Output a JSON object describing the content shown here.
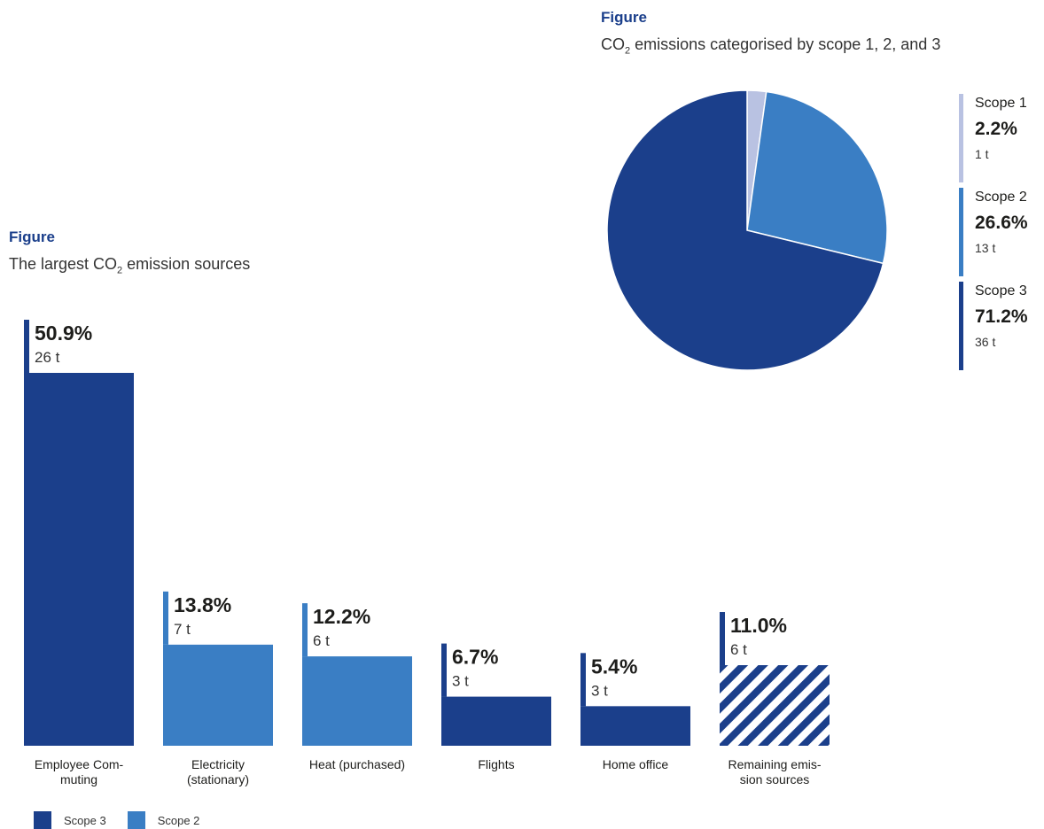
{
  "pie_figure": {
    "label": "Figure",
    "title_pre": "CO",
    "title_sub": "2",
    "title_post": " emissions categorised by scope 1, 2, and 3"
  },
  "bar_figure": {
    "label": "Figure",
    "title_pre": "The largest CO",
    "title_sub": "2",
    "title_post": " emission sources"
  },
  "colors": {
    "scope1": "#b9c2e2",
    "scope2": "#3a7ec4",
    "scope3": "#1b3f8b"
  },
  "bar_legend": [
    {
      "label": "Scope 3",
      "color": "#1b3f8b"
    },
    {
      "label": "Scope 2",
      "color": "#3a7ec4"
    }
  ],
  "chart_data": [
    {
      "type": "pie",
      "title": "CO2 emissions categorised by scope 1, 2, and 3",
      "legend_position": "right",
      "slices": [
        {
          "label": "Scope 1",
          "value": 2.2,
          "value_label": "2.2%",
          "amount": "1 t",
          "color": "#b9c2e2"
        },
        {
          "label": "Scope 2",
          "value": 26.6,
          "value_label": "26.6%",
          "amount": "13 t",
          "color": "#3a7ec4"
        },
        {
          "label": "Scope 3",
          "value": 71.2,
          "value_label": "71.2%",
          "amount": "36 t",
          "color": "#1b3f8b"
        }
      ]
    },
    {
      "type": "bar",
      "title": "The largest CO2 emission sources",
      "legend_position": "bottom-left",
      "categories": [
        {
          "label_lines": [
            "Employee Com-",
            "muting"
          ],
          "value": 50.9,
          "value_label": "50.9%",
          "amount": "26 t",
          "scope": "Scope 3",
          "hatched": false
        },
        {
          "label_lines": [
            "Electricity",
            "(stationary)"
          ],
          "value": 13.8,
          "value_label": "13.8%",
          "amount": "7 t",
          "scope": "Scope 2",
          "hatched": false
        },
        {
          "label_lines": [
            "Heat (purchased)"
          ],
          "value": 12.2,
          "value_label": "12.2%",
          "amount": "6 t",
          "scope": "Scope 2",
          "hatched": false
        },
        {
          "label_lines": [
            "Flights"
          ],
          "value": 6.7,
          "value_label": "6.7%",
          "amount": "3 t",
          "scope": "Scope 3",
          "hatched": false
        },
        {
          "label_lines": [
            "Home office"
          ],
          "value": 5.4,
          "value_label": "5.4%",
          "amount": "3 t",
          "scope": "Scope 3",
          "hatched": false
        },
        {
          "label_lines": [
            "Remaining emis-",
            "sion sources"
          ],
          "value": 11.0,
          "value_label": "11.0%",
          "amount": "6 t",
          "scope": "",
          "hatched": true
        }
      ]
    }
  ]
}
